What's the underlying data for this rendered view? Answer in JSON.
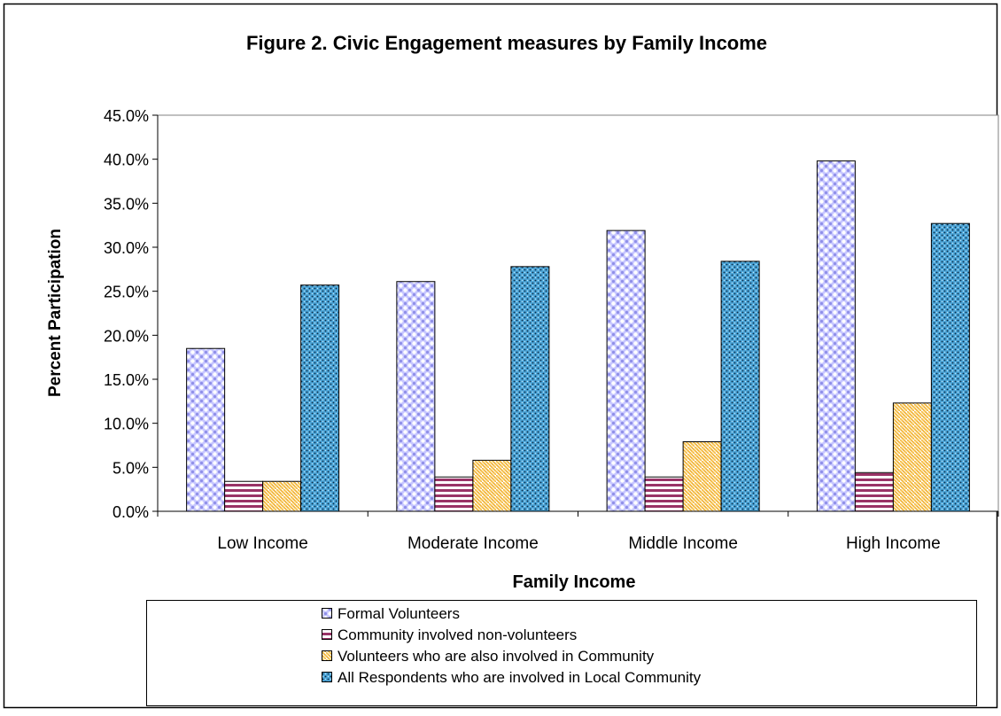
{
  "chart_data": {
    "type": "bar",
    "title": "Figure 2. Civic Engagement measures by Family Income",
    "xlabel": "Family Income",
    "ylabel": "Percent Participation",
    "ylim": [
      0,
      45
    ],
    "yticks": [
      "0.0%",
      "5.0%",
      "10.0%",
      "15.0%",
      "20.0%",
      "25.0%",
      "30.0%",
      "35.0%",
      "40.0%",
      "45.0%"
    ],
    "grid": false,
    "legend_position": "bottom",
    "categories": [
      "Low Income",
      "Moderate Income",
      "Middle Income",
      "High Income"
    ],
    "series": [
      {
        "name": "Formal Volunteers",
        "values": [
          18.5,
          26.1,
          31.9,
          39.8
        ],
        "color": "#9999ff",
        "pattern": "dots"
      },
      {
        "name": "Community involved non-volunteers",
        "values": [
          3.4,
          3.9,
          3.9,
          4.4
        ],
        "color": "#993366",
        "pattern": "horizontal-stripes"
      },
      {
        "name": "Volunteers who are also involved in Community",
        "values": [
          3.4,
          5.8,
          7.9,
          12.3
        ],
        "color": "#ffcc66",
        "pattern": "weave"
      },
      {
        "name": "All Respondents who are involved in Local Community",
        "values": [
          25.7,
          27.8,
          28.4,
          32.7
        ],
        "color": "#3399cc",
        "pattern": "dense-dots"
      }
    ]
  }
}
